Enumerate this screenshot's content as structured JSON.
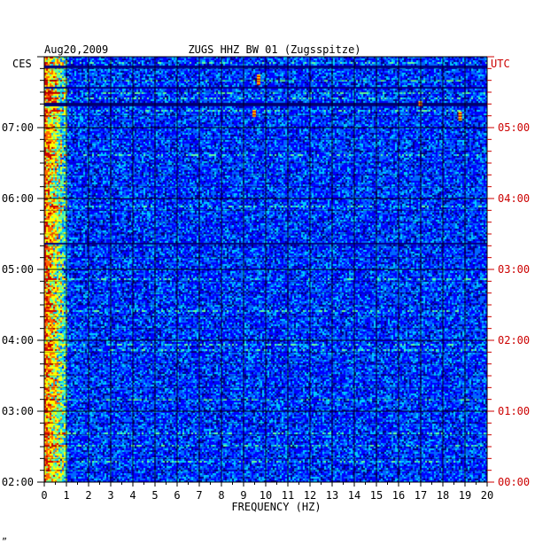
{
  "chart_data": {
    "type": "heatmap",
    "title": "ZUGS HHZ BW 01 (Zugsspitze)",
    "date": "Aug20,2009",
    "left_axis_title": "CES",
    "right_axis_title": "UTC",
    "xlabel": "FREQUENCY (HZ)",
    "xlim": [
      0,
      20
    ],
    "x_ticks": [
      "0",
      "1",
      "2",
      "3",
      "4",
      "5",
      "6",
      "7",
      "8",
      "9",
      "10",
      "11",
      "12",
      "13",
      "14",
      "15",
      "16",
      "17",
      "18",
      "19",
      "20"
    ],
    "left_time_ticks": [
      "02:00",
      "03:00",
      "04:00",
      "05:00",
      "06:00",
      "07:00"
    ],
    "right_time_ticks": [
      "00:00",
      "01:00",
      "02:00",
      "03:00",
      "04:00",
      "05:00"
    ],
    "time_range_hours": [
      0,
      6
    ],
    "colormap": [
      "#000080",
      "#0000ff",
      "#0066ff",
      "#00ccff",
      "#66ff99",
      "#ffff00",
      "#ff6600",
      "#cc0000"
    ],
    "description_levels": "low energy dark blue dominant; high energy near 0-1 Hz; bursts near 9.5 Hz and 18.5-19 Hz"
  },
  "corner_mark": "ˮ",
  "colors": {
    "left_axis": "#000000",
    "right_axis": "#cc0000",
    "background": "#0000ff"
  }
}
